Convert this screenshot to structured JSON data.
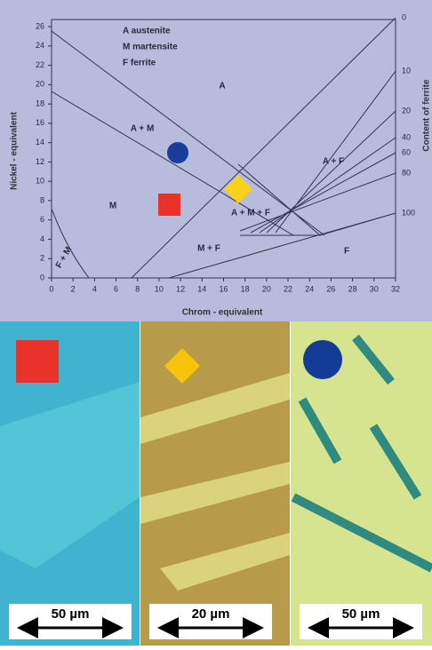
{
  "diagram": {
    "legend": [
      "A austenite",
      "M martensite",
      "F ferrite"
    ],
    "x_axis": {
      "label": "Chrom - equivalent",
      "ticks": [
        "0",
        "2",
        "4",
        "6",
        "8",
        "10",
        "12",
        "14",
        "16",
        "18",
        "20",
        "22",
        "24",
        "26",
        "28",
        "30",
        "32"
      ]
    },
    "y_axis": {
      "label": "Nickel - equivalent",
      "ticks": [
        "0",
        "2",
        "4",
        "6",
        "8",
        "10",
        "12",
        "14",
        "16",
        "18",
        "20",
        "22",
        "24",
        "26"
      ]
    },
    "right_axis": {
      "label": "Content of ferrite",
      "ticks": [
        "0",
        "10",
        "20",
        "40",
        "60",
        "80",
        "100"
      ]
    },
    "regions": [
      "A",
      "A + M",
      "M",
      "F + M",
      "M + F",
      "A + M + F",
      "A + F",
      "F"
    ]
  },
  "panels": [
    {
      "scale": "50 µm"
    },
    {
      "scale": "20 µm"
    },
    {
      "scale": "50 µm"
    }
  ]
}
